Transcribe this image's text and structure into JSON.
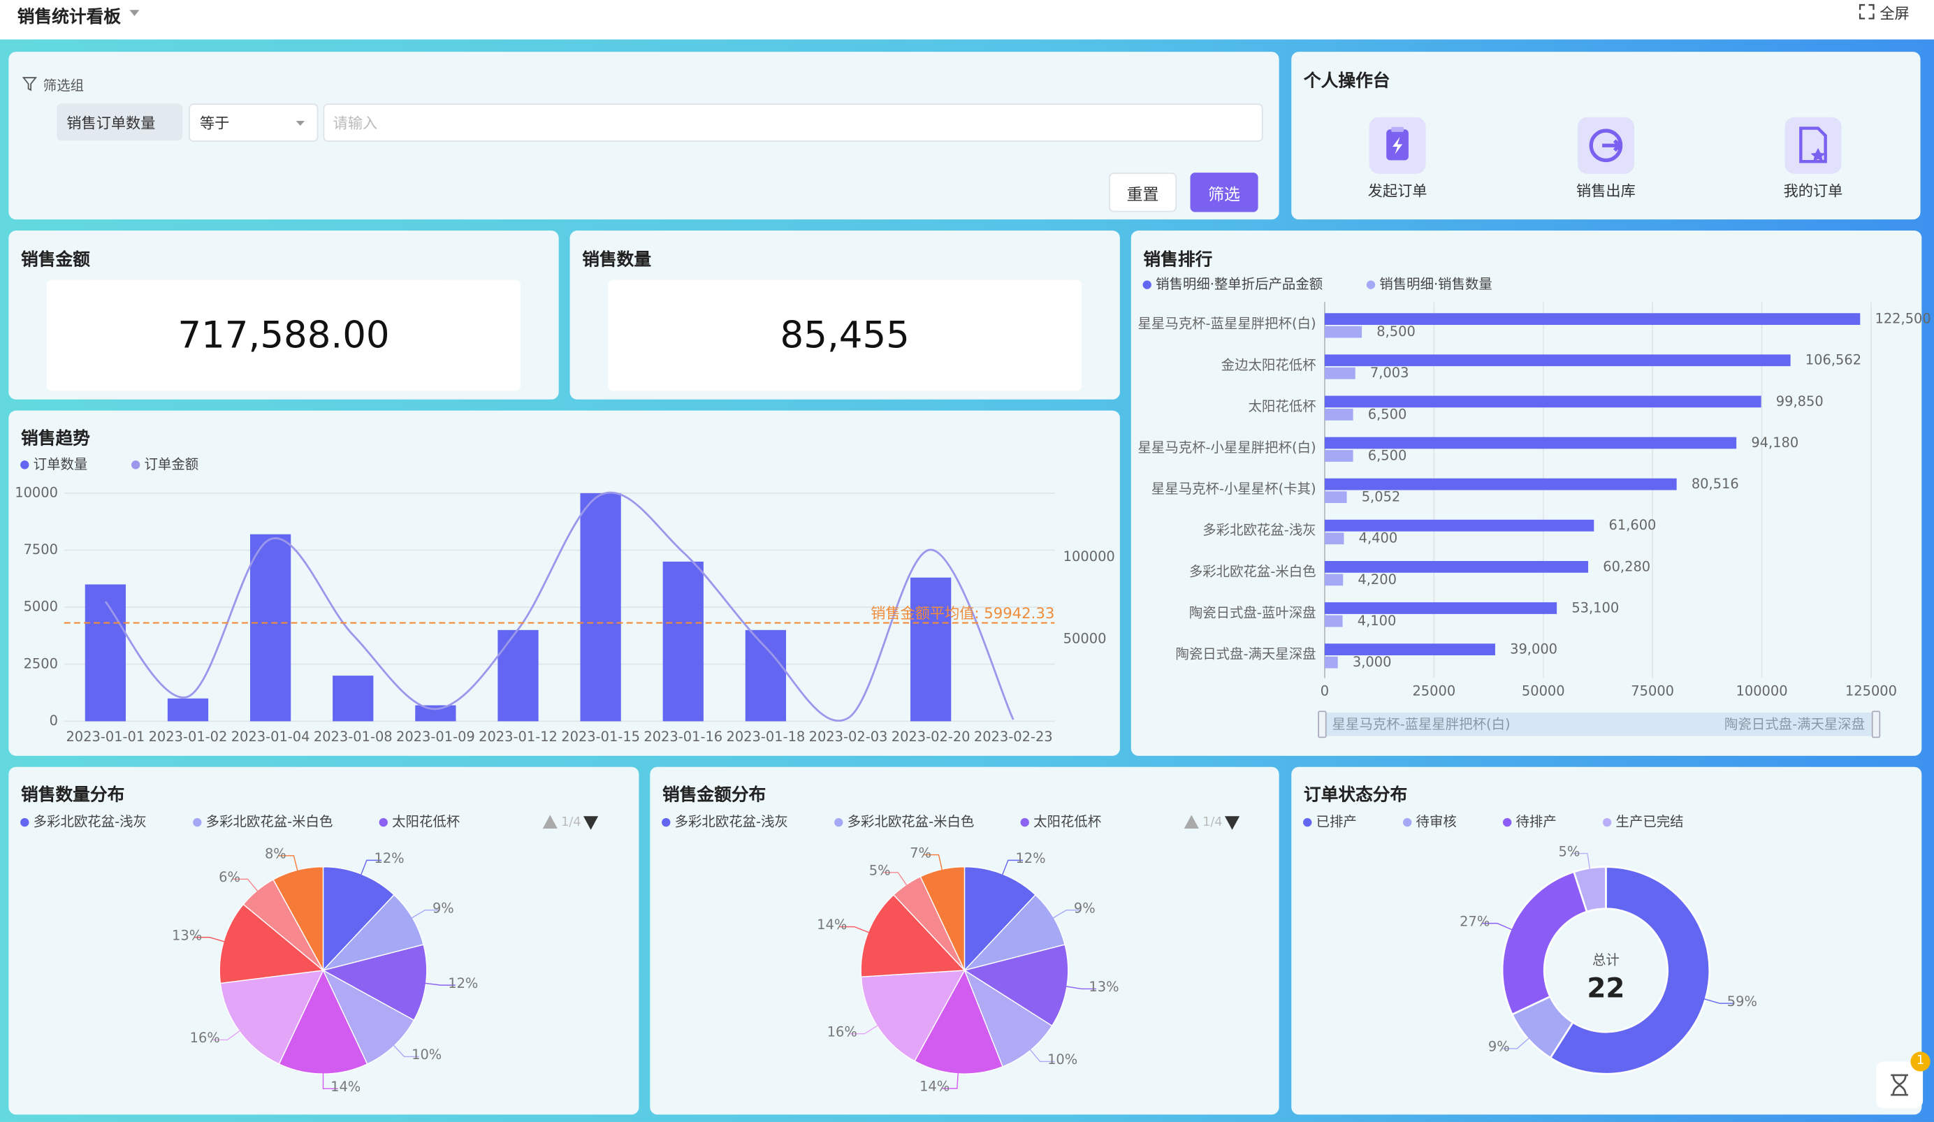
{
  "header": {
    "title": "销售统计看板",
    "fullscreen": "全屏"
  },
  "filter": {
    "group": "筛选组",
    "field": "销售订单数量",
    "operator": "等于",
    "placeholder": "请输入",
    "reset": "重置",
    "submit": "筛选"
  },
  "workbench": {
    "title": "个人操作台",
    "actions": [
      "发起订单",
      "销售出库",
      "我的订单"
    ]
  },
  "kpis": [
    {
      "title": "销售金额",
      "value": "717,588.00"
    },
    {
      "title": "销售数量",
      "value": "85,455"
    }
  ],
  "assistant_badge": "1",
  "chart_data": [
    {
      "type": "combo",
      "title": "销售趋势",
      "categories": [
        "2023-01-01",
        "2023-01-02",
        "2023-01-04",
        "2023-01-08",
        "2023-01-09",
        "2023-01-12",
        "2023-01-15",
        "2023-01-16",
        "2023-01-18",
        "2023-02-03",
        "2023-02-20",
        "2023-02-23"
      ],
      "series": [
        {
          "name": "订单数量",
          "type": "bar",
          "color": "#6366f1",
          "values": [
            6000,
            1000,
            8200,
            2000,
            700,
            4000,
            10000,
            7000,
            4000,
            0,
            6300,
            0
          ]
        },
        {
          "name": "订单金额",
          "type": "line",
          "axis": "y2",
          "smooth": true,
          "color": "#9b98ec",
          "values": [
            72900,
            15000,
            111000,
            52600,
            7500,
            56000,
            138000,
            103000,
            45000,
            2000,
            104500,
            1000
          ]
        }
      ],
      "ylim": [
        0,
        10000
      ],
      "yticks": [
        0,
        2500,
        5000,
        7500,
        10000
      ],
      "y2lim": [
        0,
        139000
      ],
      "y2ticks": [
        50000,
        100000
      ],
      "markline": {
        "axis": "y2",
        "value": 59942.33,
        "label": "销售金额平均值: 59942.33",
        "color": "#f08c3a"
      },
      "grid": true
    },
    {
      "type": "hbar",
      "title": "销售排行",
      "categories": [
        "星星马克杯-蓝星星胖把杯(白)",
        "金边太阳花低杯",
        "太阳花低杯",
        "星星马克杯-小星星胖把杯(白)",
        "星星马克杯-小星星杯(卡其)",
        "多彩北欧花盆-浅灰",
        "多彩北欧花盆-米白色",
        "陶瓷日式盘-蓝叶深盘",
        "陶瓷日式盘-满天星深盘"
      ],
      "series": [
        {
          "name": "销售明细·整单折后产品金额",
          "color": "#6366f1",
          "values": [
            122500,
            106562,
            99850,
            94180,
            80516,
            61600,
            60280,
            53100,
            39000
          ],
          "value_labels": [
            "122,500",
            "106,562",
            "99,850",
            "94,180",
            "80,516",
            "61,600",
            "60,280",
            "53,100",
            "39,000"
          ]
        },
        {
          "name": "销售明细·销售数量",
          "color": "#a5a8f5",
          "values": [
            8500,
            7003,
            6500,
            6500,
            5052,
            4400,
            4200,
            4100,
            3000
          ],
          "value_labels": [
            "8,500",
            "7,003",
            "6,500",
            "6,500",
            "5,052",
            "4,400",
            "4,200",
            "4,100",
            "3,000"
          ]
        }
      ],
      "xlim": [
        0,
        125000
      ],
      "xticks": [
        0,
        25000,
        50000,
        75000,
        100000,
        125000
      ],
      "grid": true
    },
    {
      "type": "pie",
      "title": "销售数量分布",
      "categories": [
        "多彩北欧花盆-浅灰",
        "多彩北欧花盆-米白色",
        "太阳花低杯",
        null,
        null,
        null,
        null,
        null,
        null
      ],
      "colors": [
        "#6366f1",
        "#a5a8f5",
        "#8b62f2",
        "#b0a9f5",
        "#d35cf0",
        "#e3a5f7",
        "#f85458",
        "#f7898e",
        "#f77b38"
      ],
      "values": [
        12,
        9,
        12,
        10,
        14,
        16,
        13,
        6,
        8
      ],
      "value_labels": [
        "12%",
        "9%",
        "12%",
        "10%",
        "14%",
        "16%",
        "13%",
        "6%",
        "8%"
      ],
      "legend_page": "1/4"
    },
    {
      "type": "pie",
      "title": "销售金额分布",
      "categories": [
        "多彩北欧花盆-浅灰",
        "多彩北欧花盆-米白色",
        "太阳花低杯",
        null,
        null,
        null,
        null,
        null,
        null
      ],
      "colors": [
        "#6366f1",
        "#a5a8f5",
        "#8b62f2",
        "#b0a9f5",
        "#d35cf0",
        "#e3a5f7",
        "#f85458",
        "#f7898e",
        "#f77b38"
      ],
      "values": [
        12,
        9,
        13,
        10,
        14,
        16,
        14,
        5,
        7
      ],
      "value_labels": [
        "12%",
        "9%",
        "13%",
        "10%",
        "14%",
        "16%",
        "14%",
        "5%",
        "7%"
      ],
      "legend_page": "1/4"
    },
    {
      "type": "donut",
      "title": "订单状态分布",
      "categories": [
        "已排产",
        "待审核",
        "待排产",
        "生产已完结"
      ],
      "colors": [
        "#6366f1",
        "#a5a8f5",
        "#8b5cf6",
        "#b9aef7"
      ],
      "values": [
        59,
        9,
        27,
        5
      ],
      "value_labels": [
        "59%",
        "9%",
        "27%",
        "5%"
      ],
      "total_label": "总计",
      "total": 22
    }
  ]
}
